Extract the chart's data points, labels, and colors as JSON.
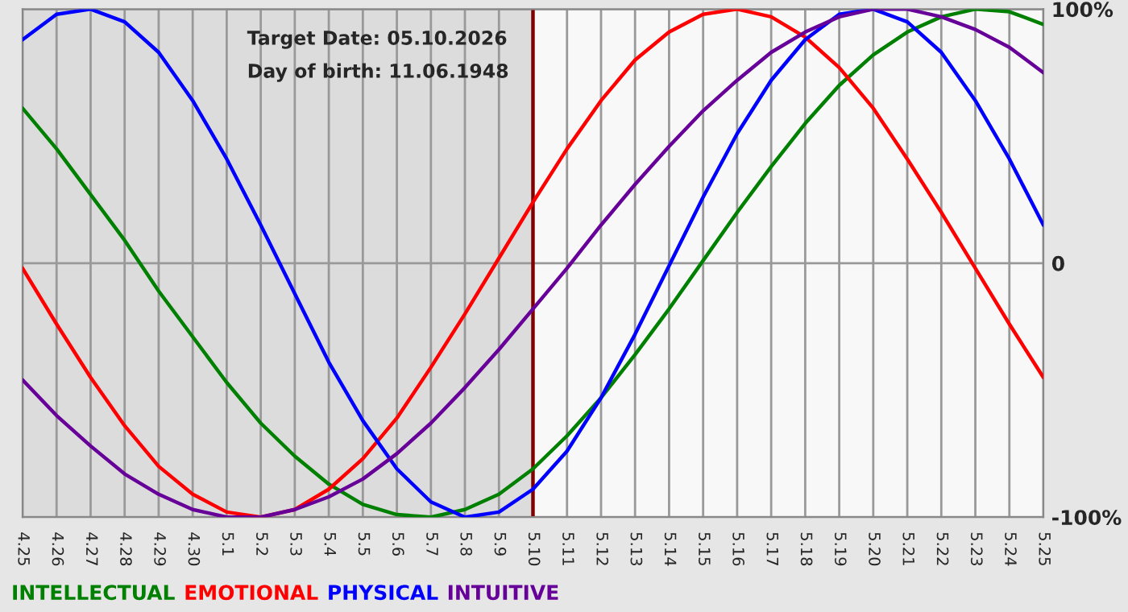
{
  "chart_data": {
    "type": "line",
    "categories": [
      "4.25",
      "4.26",
      "4.27",
      "4.28",
      "4.29",
      "4.30",
      "5.1",
      "5.2",
      "5.3",
      "5.4",
      "5.5",
      "5.6",
      "5.7",
      "5.8",
      "5.9",
      "5.10",
      "5.11",
      "5.12",
      "5.13",
      "5.14",
      "5.15",
      "5.16",
      "5.17",
      "5.18",
      "5.19",
      "5.20",
      "5.21",
      "5.22",
      "5.23",
      "5.24",
      "5.25"
    ],
    "series": [
      {
        "name": "INTELLECTUAL",
        "color": "#008000",
        "values": [
          61,
          45,
          27,
          9,
          -11,
          -29,
          -47,
          -63,
          -76,
          -87,
          -95,
          -99,
          -100,
          -97,
          -91,
          -81,
          -68,
          -53,
          -36,
          -18,
          1,
          20,
          38,
          55,
          70,
          82,
          91,
          97,
          100,
          99,
          94
        ]
      },
      {
        "name": "EMOTIONAL",
        "color": "#ff0000",
        "values": [
          -2,
          -24,
          -45,
          -64,
          -80,
          -91,
          -98,
          -100,
          -97,
          -89,
          -77,
          -61,
          -41,
          -20,
          2,
          24,
          45,
          64,
          80,
          91,
          98,
          100,
          97,
          89,
          77,
          61,
          41,
          20,
          -2,
          -24,
          -45
        ]
      },
      {
        "name": "PHYSICAL",
        "color": "#0000ff",
        "values": [
          88,
          98,
          100,
          95,
          83,
          64,
          41,
          15,
          -12,
          -39,
          -62,
          -81,
          -94,
          -100,
          -98,
          -89,
          -74,
          -53,
          -28,
          -1,
          26,
          51,
          72,
          88,
          98,
          100,
          95,
          83,
          64,
          41,
          15
        ]
      },
      {
        "name": "INTUITIVE",
        "color": "#660099",
        "values": [
          -46,
          -60,
          -72,
          -83,
          -91,
          -97,
          -100,
          -100,
          -97,
          -92,
          -85,
          -75,
          -63,
          -49,
          -34,
          -18,
          -2,
          15,
          31,
          46,
          60,
          72,
          83,
          91,
          97,
          100,
          100,
          97,
          92,
          85,
          75
        ]
      }
    ],
    "ylim": [
      -100,
      100
    ],
    "yticks": [
      {
        "value": 100,
        "label": "100%"
      },
      0,
      {
        "value": -100,
        "label": "-100%"
      }
    ],
    "grid": true,
    "legend": "bottom",
    "marker": "none",
    "line_style": "solid",
    "ref_lines": [
      {
        "axis": "x",
        "value": "5.10",
        "color": "#800000"
      }
    ],
    "bands": [
      {
        "axis": "x",
        "from": "4.25",
        "to": "5.10",
        "color": "#dcdcdc"
      }
    ],
    "annotations": [
      "Target Date: 05.10.2026",
      "Day of birth: 11.06.1948"
    ]
  }
}
